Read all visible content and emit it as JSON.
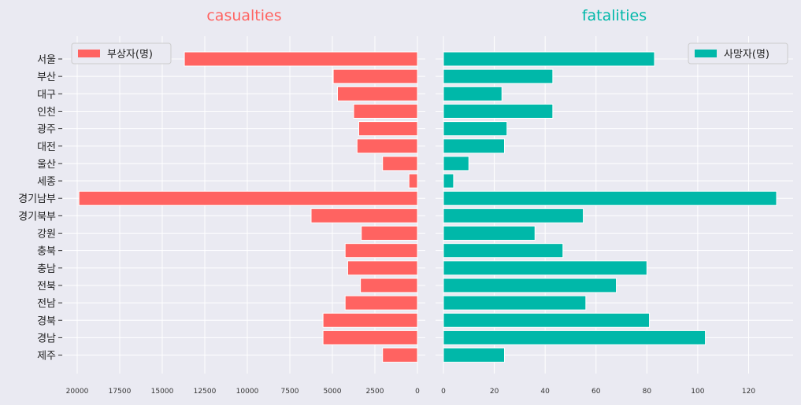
{
  "colors": {
    "left": "#ff6361",
    "right": "#00b8a9",
    "grid": "#ffffff",
    "bg": "#eaeaf2"
  },
  "chart_data": [
    {
      "type": "bar",
      "orientation": "horizontal",
      "x_axis": "reversed",
      "title": "casualties",
      "categories": [
        "서울",
        "부산",
        "대구",
        "인천",
        "광주",
        "대전",
        "울산",
        "세종",
        "경기남부",
        "경기북부",
        "강원",
        "충북",
        "충남",
        "전북",
        "전남",
        "경북",
        "경남",
        "제주"
      ],
      "series": [
        {
          "name": "부상자(명)",
          "values": [
            13700,
            4950,
            4700,
            3750,
            3450,
            3550,
            2050,
            500,
            19900,
            6250,
            3300,
            4250,
            4100,
            3350,
            4250,
            5550,
            5550,
            2050
          ]
        }
      ],
      "xlim": [
        0,
        20500
      ],
      "xticks": [
        20000,
        17500,
        15000,
        12500,
        10000,
        7500,
        5000,
        2500,
        0
      ],
      "grid": true,
      "legend": "top-left"
    },
    {
      "type": "bar",
      "orientation": "horizontal",
      "title": "fatalities",
      "categories": [
        "서울",
        "부산",
        "대구",
        "인천",
        "광주",
        "대전",
        "울산",
        "세종",
        "경기남부",
        "경기북부",
        "강원",
        "충북",
        "충남",
        "전북",
        "전남",
        "경북",
        "경남",
        "제주"
      ],
      "series": [
        {
          "name": "사망자(명)",
          "values": [
            83,
            43,
            23,
            43,
            25,
            24,
            10,
            4,
            131,
            55,
            36,
            47,
            80,
            68,
            56,
            81,
            103,
            24
          ]
        }
      ],
      "xlim": [
        0,
        137.5
      ],
      "xticks": [
        0,
        20,
        40,
        60,
        80,
        100,
        120
      ],
      "grid": true,
      "legend": "top-right"
    }
  ]
}
